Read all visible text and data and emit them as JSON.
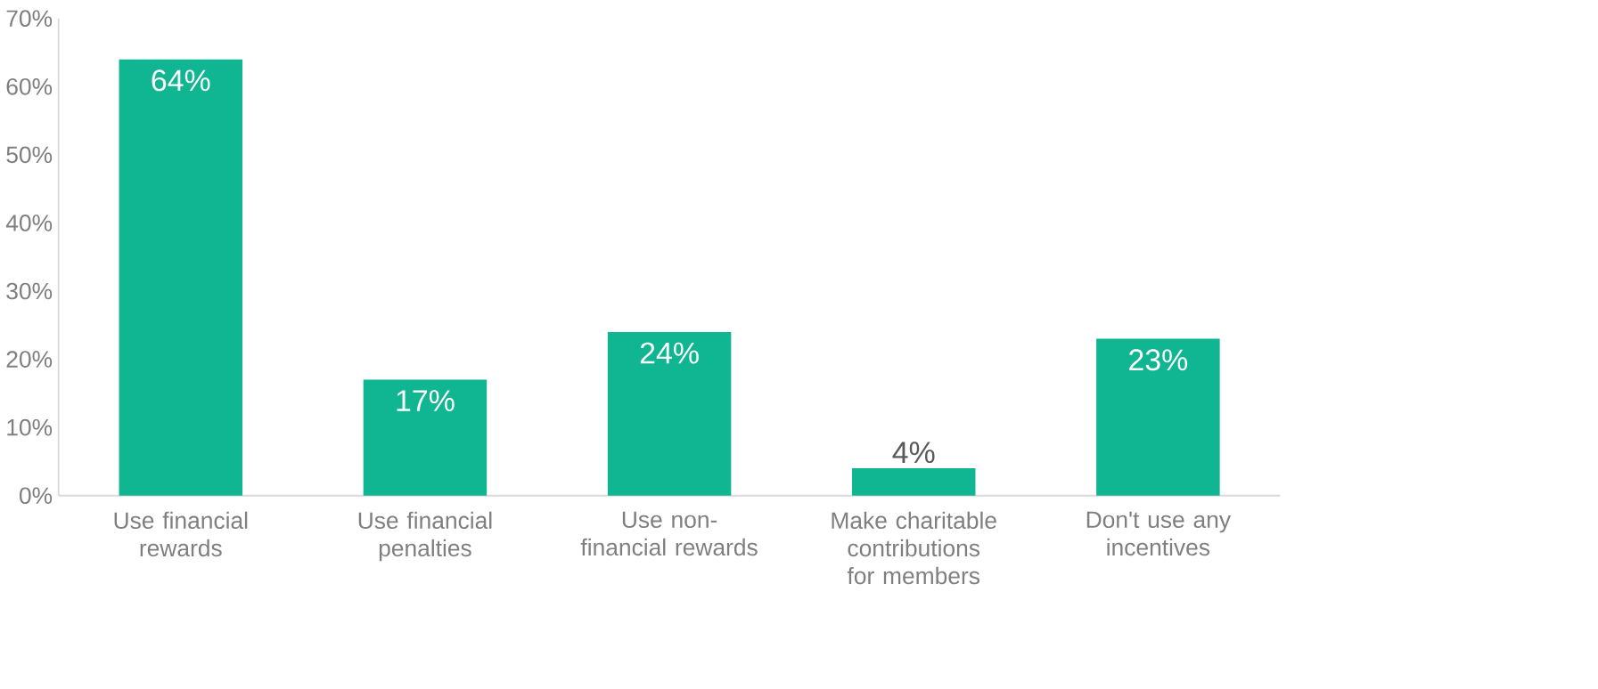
{
  "chart_data": {
    "type": "bar",
    "categories": [
      "Use financial rewards",
      "Use financial penalties",
      "Use non-financial rewards",
      "Make charitable contributions for members",
      "Don't use any incentives"
    ],
    "values": [
      64,
      17,
      24,
      4,
      23
    ],
    "value_labels": [
      "64%",
      "17%",
      "24%",
      "4%",
      "23%"
    ],
    "color": "#10b592",
    "ylim": [
      0,
      70
    ],
    "yticks": [
      {
        "value": 0,
        "label": "0%"
      },
      {
        "value": 10,
        "label": "10%"
      },
      {
        "value": 20,
        "label": "20%"
      },
      {
        "value": 30,
        "label": "30%"
      },
      {
        "value": 40,
        "label": "40%"
      },
      {
        "value": 50,
        "label": "50%"
      },
      {
        "value": 60,
        "label": "60%"
      },
      {
        "value": 70,
        "label": "70%"
      }
    ]
  }
}
